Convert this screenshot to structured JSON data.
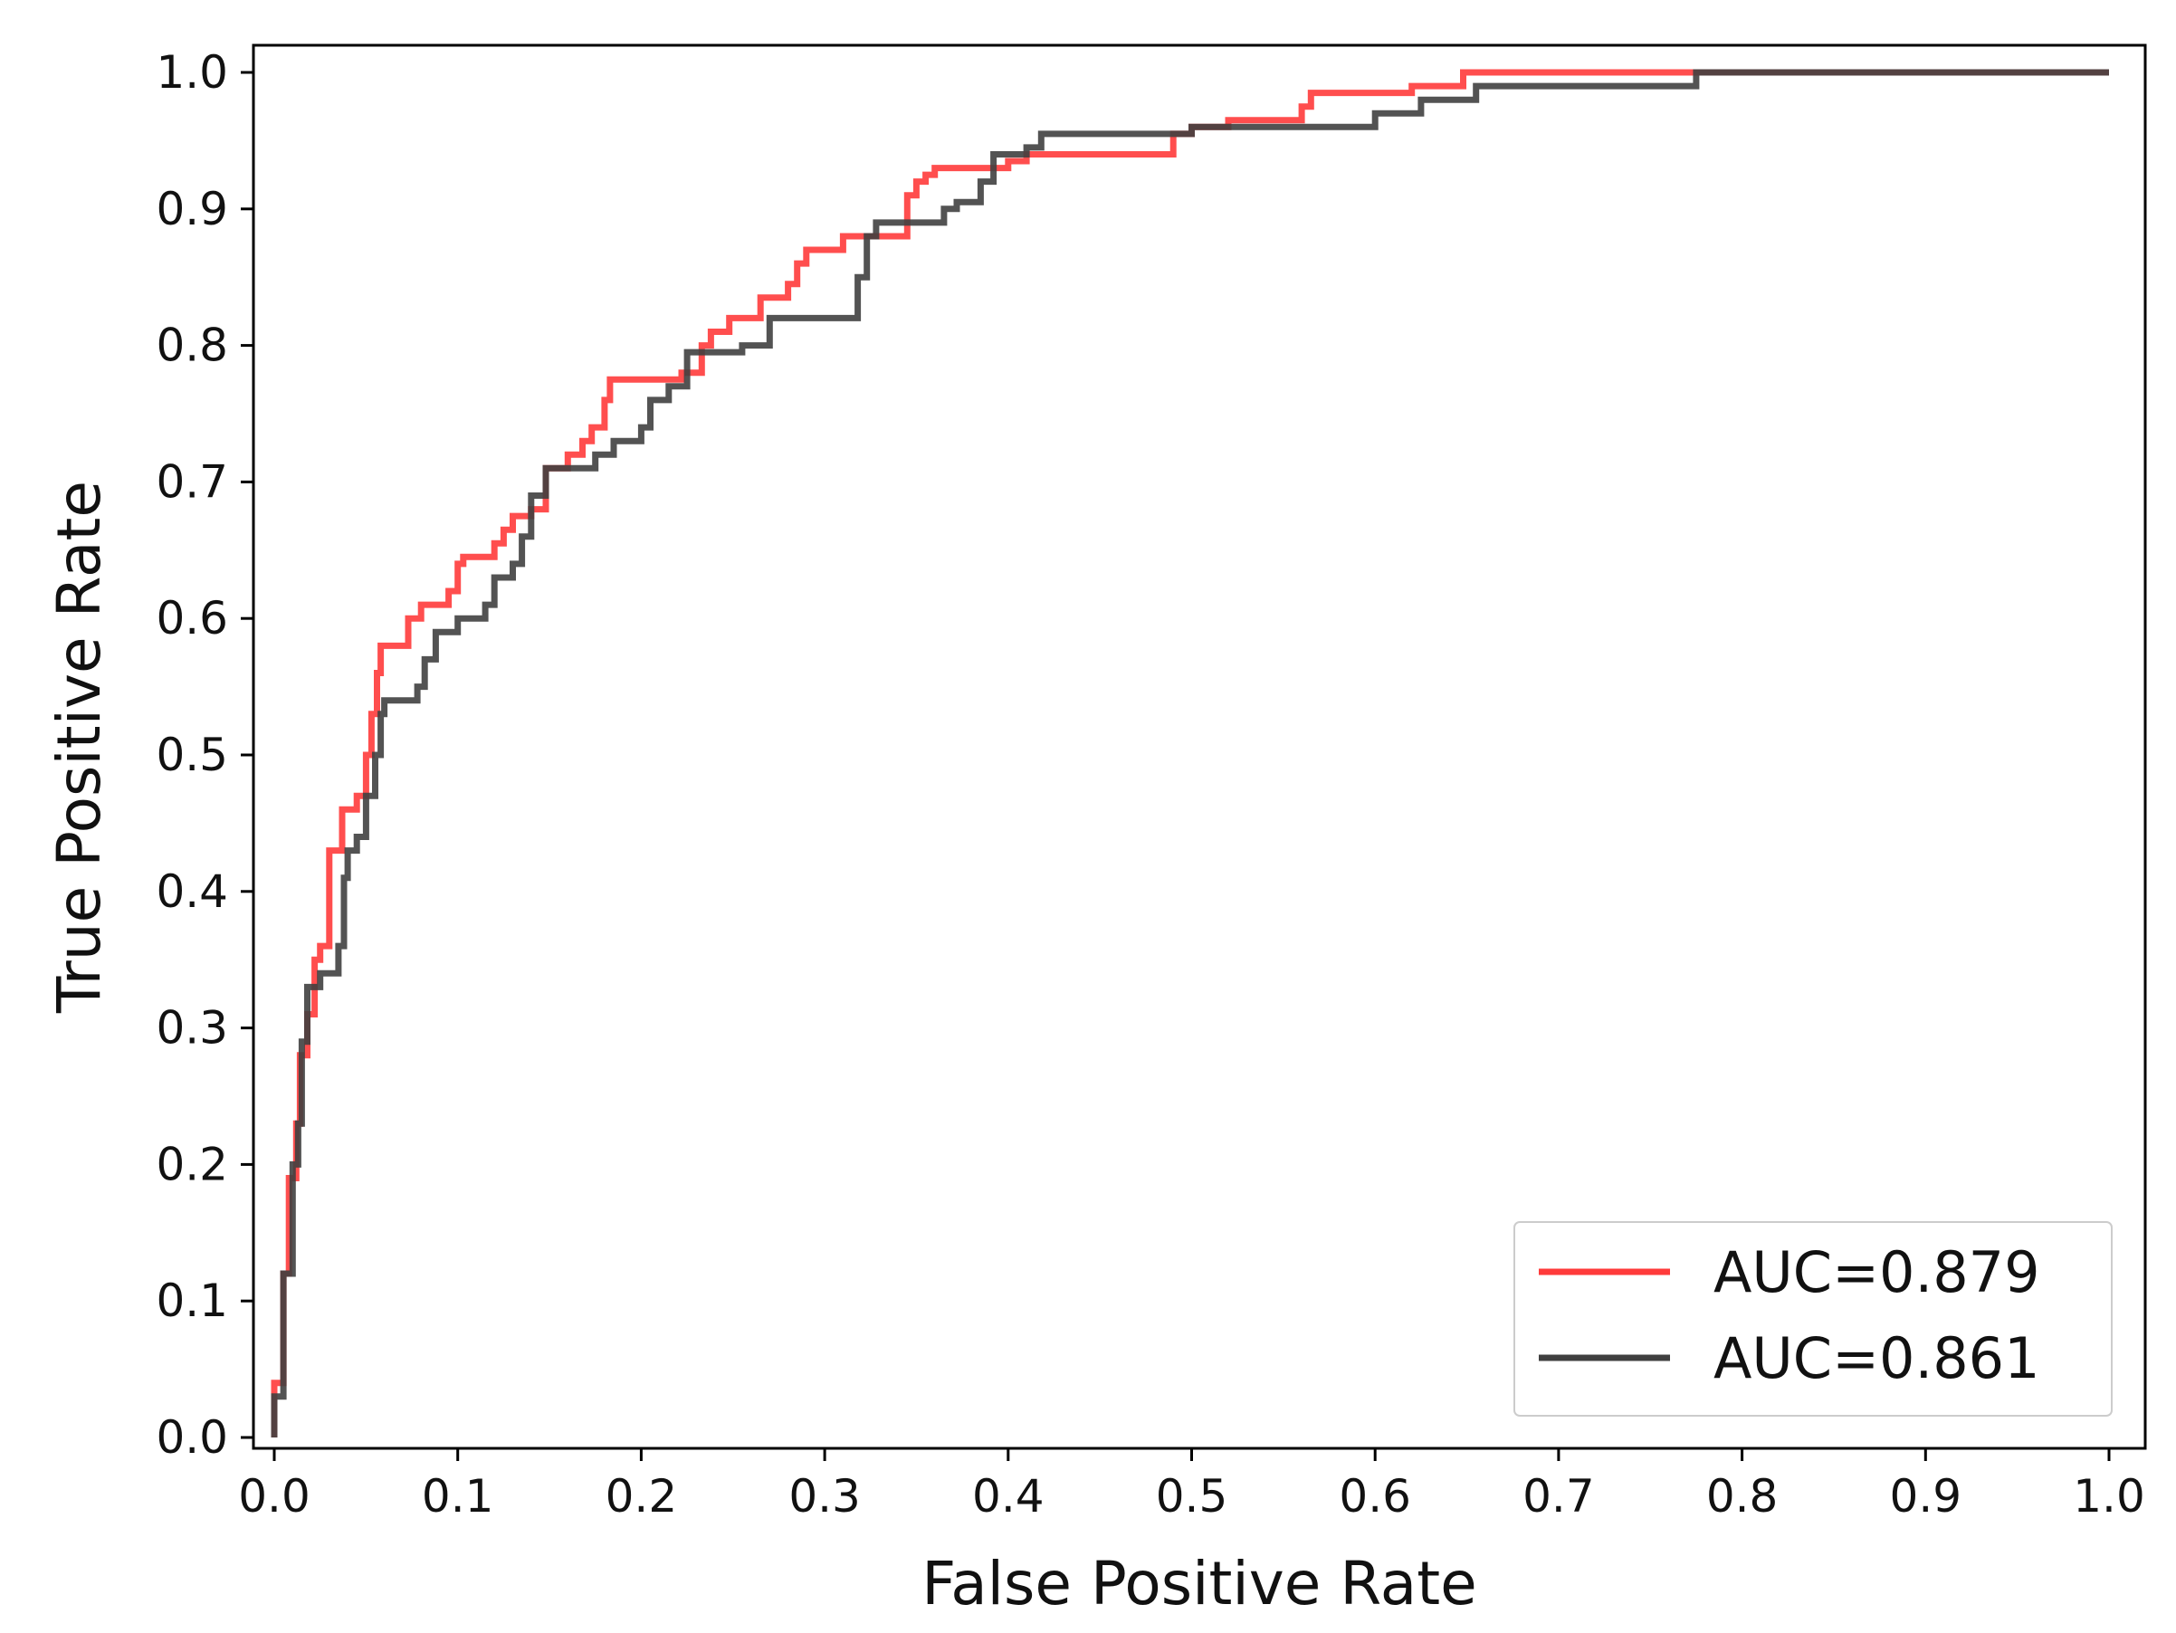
{
  "chart_data": {
    "type": "line",
    "title": "",
    "xlabel": "False Positive Rate",
    "ylabel": "True Positive Rate",
    "xlim": [
      0.0,
      1.0
    ],
    "ylim": [
      0.0,
      1.0
    ],
    "xticks": [
      "0.0",
      "0.1",
      "0.2",
      "0.3",
      "0.4",
      "0.5",
      "0.6",
      "0.7",
      "0.8",
      "0.9",
      "1.0"
    ],
    "yticks": [
      "0.0",
      "0.1",
      "0.2",
      "0.3",
      "0.4",
      "0.5",
      "0.6",
      "0.7",
      "0.8",
      "0.9",
      "1.0"
    ],
    "grid": false,
    "legend_position": "lower-right",
    "series": [
      {
        "name": "AUC=0.879",
        "color": "#ff3b3b",
        "points": [
          [
            0.0,
            0.0
          ],
          [
            0.0,
            0.04
          ],
          [
            0.005,
            0.04
          ],
          [
            0.005,
            0.12
          ],
          [
            0.008,
            0.12
          ],
          [
            0.008,
            0.19
          ],
          [
            0.012,
            0.19
          ],
          [
            0.012,
            0.23
          ],
          [
            0.014,
            0.23
          ],
          [
            0.014,
            0.28
          ],
          [
            0.018,
            0.28
          ],
          [
            0.018,
            0.31
          ],
          [
            0.022,
            0.31
          ],
          [
            0.022,
            0.35
          ],
          [
            0.025,
            0.35
          ],
          [
            0.025,
            0.36
          ],
          [
            0.03,
            0.36
          ],
          [
            0.03,
            0.43
          ],
          [
            0.037,
            0.43
          ],
          [
            0.037,
            0.46
          ],
          [
            0.045,
            0.46
          ],
          [
            0.045,
            0.47
          ],
          [
            0.05,
            0.47
          ],
          [
            0.05,
            0.5
          ],
          [
            0.053,
            0.5
          ],
          [
            0.053,
            0.53
          ],
          [
            0.056,
            0.53
          ],
          [
            0.056,
            0.56
          ],
          [
            0.058,
            0.56
          ],
          [
            0.058,
            0.58
          ],
          [
            0.073,
            0.58
          ],
          [
            0.073,
            0.6
          ],
          [
            0.08,
            0.6
          ],
          [
            0.08,
            0.61
          ],
          [
            0.095,
            0.61
          ],
          [
            0.095,
            0.62
          ],
          [
            0.1,
            0.62
          ],
          [
            0.1,
            0.64
          ],
          [
            0.103,
            0.64
          ],
          [
            0.103,
            0.645
          ],
          [
            0.12,
            0.645
          ],
          [
            0.12,
            0.655
          ],
          [
            0.125,
            0.655
          ],
          [
            0.125,
            0.665
          ],
          [
            0.13,
            0.665
          ],
          [
            0.13,
            0.675
          ],
          [
            0.14,
            0.675
          ],
          [
            0.14,
            0.68
          ],
          [
            0.148,
            0.68
          ],
          [
            0.148,
            0.71
          ],
          [
            0.16,
            0.71
          ],
          [
            0.16,
            0.72
          ],
          [
            0.168,
            0.72
          ],
          [
            0.168,
            0.73
          ],
          [
            0.173,
            0.73
          ],
          [
            0.173,
            0.74
          ],
          [
            0.18,
            0.74
          ],
          [
            0.18,
            0.76
          ],
          [
            0.183,
            0.76
          ],
          [
            0.183,
            0.775
          ],
          [
            0.222,
            0.775
          ],
          [
            0.222,
            0.78
          ],
          [
            0.233,
            0.78
          ],
          [
            0.233,
            0.8
          ],
          [
            0.238,
            0.8
          ],
          [
            0.238,
            0.81
          ],
          [
            0.248,
            0.81
          ],
          [
            0.248,
            0.82
          ],
          [
            0.265,
            0.82
          ],
          [
            0.265,
            0.835
          ],
          [
            0.28,
            0.835
          ],
          [
            0.28,
            0.845
          ],
          [
            0.285,
            0.845
          ],
          [
            0.285,
            0.86
          ],
          [
            0.29,
            0.86
          ],
          [
            0.29,
            0.87
          ],
          [
            0.31,
            0.87
          ],
          [
            0.31,
            0.88
          ],
          [
            0.345,
            0.88
          ],
          [
            0.345,
            0.91
          ],
          [
            0.35,
            0.91
          ],
          [
            0.35,
            0.92
          ],
          [
            0.355,
            0.92
          ],
          [
            0.355,
            0.925
          ],
          [
            0.36,
            0.925
          ],
          [
            0.36,
            0.93
          ],
          [
            0.4,
            0.93
          ],
          [
            0.4,
            0.935
          ],
          [
            0.41,
            0.935
          ],
          [
            0.41,
            0.94
          ],
          [
            0.49,
            0.94
          ],
          [
            0.49,
            0.955
          ],
          [
            0.5,
            0.955
          ],
          [
            0.5,
            0.96
          ],
          [
            0.52,
            0.96
          ],
          [
            0.52,
            0.965
          ],
          [
            0.56,
            0.965
          ],
          [
            0.56,
            0.975
          ],
          [
            0.565,
            0.975
          ],
          [
            0.565,
            0.985
          ],
          [
            0.62,
            0.985
          ],
          [
            0.62,
            0.99
          ],
          [
            0.648,
            0.99
          ],
          [
            0.648,
            1.0
          ],
          [
            0.778,
            1.0
          ],
          [
            1.0,
            1.0
          ]
        ]
      },
      {
        "name": "AUC=0.861",
        "color": "#404040",
        "points": [
          [
            0.0,
            0.0
          ],
          [
            0.0,
            0.03
          ],
          [
            0.005,
            0.03
          ],
          [
            0.005,
            0.12
          ],
          [
            0.01,
            0.12
          ],
          [
            0.01,
            0.2
          ],
          [
            0.013,
            0.2
          ],
          [
            0.013,
            0.23
          ],
          [
            0.015,
            0.23
          ],
          [
            0.015,
            0.29
          ],
          [
            0.018,
            0.29
          ],
          [
            0.018,
            0.33
          ],
          [
            0.025,
            0.33
          ],
          [
            0.025,
            0.34
          ],
          [
            0.035,
            0.34
          ],
          [
            0.035,
            0.36
          ],
          [
            0.038,
            0.36
          ],
          [
            0.038,
            0.41
          ],
          [
            0.04,
            0.41
          ],
          [
            0.04,
            0.43
          ],
          [
            0.045,
            0.43
          ],
          [
            0.045,
            0.44
          ],
          [
            0.05,
            0.44
          ],
          [
            0.05,
            0.47
          ],
          [
            0.055,
            0.47
          ],
          [
            0.055,
            0.5
          ],
          [
            0.058,
            0.5
          ],
          [
            0.058,
            0.53
          ],
          [
            0.06,
            0.53
          ],
          [
            0.06,
            0.54
          ],
          [
            0.078,
            0.54
          ],
          [
            0.078,
            0.55
          ],
          [
            0.082,
            0.55
          ],
          [
            0.082,
            0.57
          ],
          [
            0.088,
            0.57
          ],
          [
            0.088,
            0.59
          ],
          [
            0.1,
            0.59
          ],
          [
            0.1,
            0.6
          ],
          [
            0.115,
            0.6
          ],
          [
            0.115,
            0.61
          ],
          [
            0.12,
            0.61
          ],
          [
            0.12,
            0.63
          ],
          [
            0.13,
            0.63
          ],
          [
            0.13,
            0.64
          ],
          [
            0.135,
            0.64
          ],
          [
            0.135,
            0.66
          ],
          [
            0.14,
            0.66
          ],
          [
            0.14,
            0.69
          ],
          [
            0.148,
            0.69
          ],
          [
            0.148,
            0.71
          ],
          [
            0.175,
            0.71
          ],
          [
            0.175,
            0.72
          ],
          [
            0.185,
            0.72
          ],
          [
            0.185,
            0.73
          ],
          [
            0.2,
            0.73
          ],
          [
            0.2,
            0.74
          ],
          [
            0.205,
            0.74
          ],
          [
            0.205,
            0.76
          ],
          [
            0.215,
            0.76
          ],
          [
            0.215,
            0.77
          ],
          [
            0.225,
            0.77
          ],
          [
            0.225,
            0.795
          ],
          [
            0.255,
            0.795
          ],
          [
            0.255,
            0.8
          ],
          [
            0.27,
            0.8
          ],
          [
            0.27,
            0.82
          ],
          [
            0.318,
            0.82
          ],
          [
            0.318,
            0.85
          ],
          [
            0.323,
            0.85
          ],
          [
            0.323,
            0.88
          ],
          [
            0.328,
            0.88
          ],
          [
            0.328,
            0.89
          ],
          [
            0.365,
            0.89
          ],
          [
            0.365,
            0.9
          ],
          [
            0.372,
            0.9
          ],
          [
            0.372,
            0.905
          ],
          [
            0.385,
            0.905
          ],
          [
            0.385,
            0.92
          ],
          [
            0.392,
            0.92
          ],
          [
            0.392,
            0.94
          ],
          [
            0.41,
            0.94
          ],
          [
            0.41,
            0.945
          ],
          [
            0.418,
            0.945
          ],
          [
            0.418,
            0.955
          ],
          [
            0.5,
            0.955
          ],
          [
            0.5,
            0.96
          ],
          [
            0.6,
            0.96
          ],
          [
            0.6,
            0.97
          ],
          [
            0.625,
            0.97
          ],
          [
            0.625,
            0.98
          ],
          [
            0.655,
            0.98
          ],
          [
            0.655,
            0.99
          ],
          [
            0.775,
            0.99
          ],
          [
            0.775,
            1.0
          ],
          [
            1.0,
            1.0
          ]
        ]
      }
    ]
  }
}
